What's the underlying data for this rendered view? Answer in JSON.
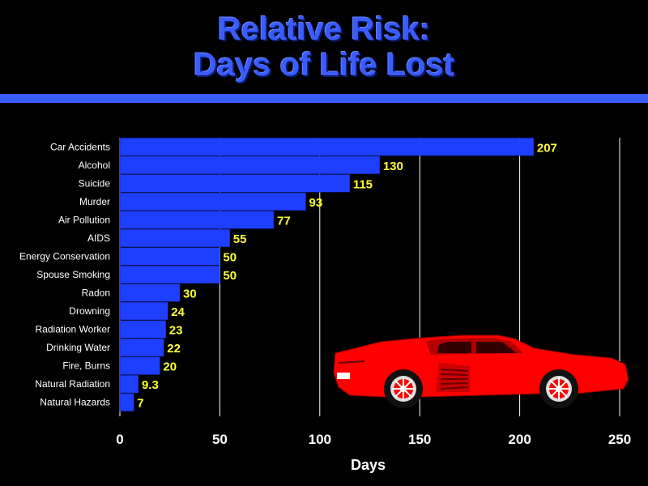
{
  "slide": {
    "title_line1": "Relative Risk:",
    "title_line2": "Days of Life Lost"
  },
  "colors": {
    "background": "#000000",
    "title": "#3a5cff",
    "bar": "#1f3fff",
    "value_label": "#ffff33",
    "category_label": "#ffffff",
    "gridline": "#ffffff",
    "car": "#ff0000"
  },
  "decoration": {
    "car_icon": "red-sports-car-icon"
  },
  "chart_data": {
    "type": "bar",
    "orientation": "horizontal",
    "categories": [
      "Car Accidents",
      "Alcohol",
      "Suicide",
      "Murder",
      "Air Pollution",
      "AIDS",
      "Energy Conservation",
      "Spouse Smoking",
      "Radon",
      "Drowning",
      "Radiation Worker",
      "Drinking Water",
      "Fire, Burns",
      "Natural Radiation",
      "Natural Hazards"
    ],
    "values": [
      207,
      130,
      115,
      93,
      77,
      55,
      50,
      50,
      30,
      24,
      23,
      22,
      20,
      9.3,
      7
    ],
    "value_labels": [
      "207",
      "130",
      "115",
      "93",
      "77",
      "55",
      "50",
      "50",
      "30",
      "24",
      "23",
      "22",
      "20",
      "9.3",
      "7"
    ],
    "xlabel": "Days",
    "ylabel": "",
    "xlim": [
      0,
      250
    ],
    "x_ticks": [
      0,
      50,
      100,
      150,
      200,
      250
    ],
    "x_tick_labels": [
      "0",
      "50",
      "100",
      "150",
      "200",
      "250"
    ],
    "grid": "vertical"
  }
}
